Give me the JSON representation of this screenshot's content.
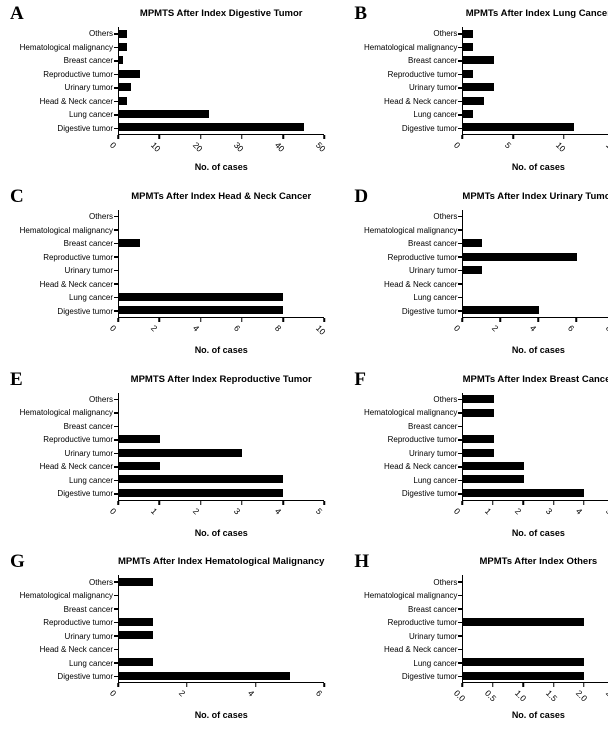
{
  "figure": {
    "x_axis_label": "No. of cases",
    "bar_color": "#000000",
    "background_color": "#ffffff",
    "category_order_top_to_bottom": [
      "Others",
      "Hematological malignancy",
      "Breast cancer",
      "Reproductive tumor",
      "Urinary tumor",
      "Head & Neck cancer",
      "Lung cancer",
      "Digestive tumor"
    ]
  },
  "chart_data": [
    {
      "type": "bar",
      "orientation": "horizontal",
      "panel": "A",
      "title": "MPMTS After Index Digestive Tumor",
      "categories": [
        "Others",
        "Hematological malignancy",
        "Breast cancer",
        "Reproductive tumor",
        "Urinary tumor",
        "Head & Neck cancer",
        "Lung cancer",
        "Digestive tumor"
      ],
      "values": [
        2,
        2,
        1,
        5,
        3,
        2,
        22,
        45
      ],
      "xlabel": "No. of cases",
      "xlim": [
        0,
        50
      ],
      "xticks": [
        "0",
        "10",
        "20",
        "30",
        "40",
        "50"
      ]
    },
    {
      "type": "bar",
      "orientation": "horizontal",
      "panel": "B",
      "title": "MPMTs After Index Lung Cancer",
      "categories": [
        "Others",
        "Hematological malignancy",
        "Breast cancer",
        "Reproductive tumor",
        "Urinary tumor",
        "Head & Neck cancer",
        "Lung cancer",
        "Digestive tumor"
      ],
      "values": [
        1,
        1,
        3,
        1,
        3,
        2,
        1,
        11
      ],
      "xlabel": "No. of cases",
      "xlim": [
        0,
        15
      ],
      "xticks": [
        "0",
        "5",
        "10",
        "15"
      ]
    },
    {
      "type": "bar",
      "orientation": "horizontal",
      "panel": "C",
      "title": "MPMTs After Index Head & Neck Cancer",
      "categories": [
        "Others",
        "Hematological malignancy",
        "Breast cancer",
        "Reproductive tumor",
        "Urinary tumor",
        "Head & Neck cancer",
        "Lung cancer",
        "Digestive tumor"
      ],
      "values": [
        0,
        0,
        1,
        0,
        0,
        0,
        8,
        8
      ],
      "xlabel": "No. of cases",
      "xlim": [
        0,
        10
      ],
      "xticks": [
        "0",
        "2",
        "4",
        "6",
        "8",
        "10"
      ]
    },
    {
      "type": "bar",
      "orientation": "horizontal",
      "panel": "D",
      "title": "MPMTs After Index Urinary Tumor",
      "categories": [
        "Others",
        "Hematological malignancy",
        "Breast cancer",
        "Reproductive tumor",
        "Urinary tumor",
        "Head & Neck cancer",
        "Lung cancer",
        "Digestive tumor"
      ],
      "values": [
        0,
        0,
        1,
        6,
        1,
        0,
        0,
        4
      ],
      "xlabel": "No. of cases",
      "xlim": [
        0,
        8
      ],
      "xticks": [
        "0",
        "2",
        "4",
        "6",
        "8"
      ]
    },
    {
      "type": "bar",
      "orientation": "horizontal",
      "panel": "E",
      "title": "MPMTS After Index Reproductive Tumor",
      "categories": [
        "Others",
        "Hematological malignancy",
        "Breast cancer",
        "Reproductive tumor",
        "Urinary tumor",
        "Head & Neck cancer",
        "Lung cancer",
        "Digestive tumor"
      ],
      "values": [
        0,
        0,
        0,
        1,
        3,
        1,
        4,
        4
      ],
      "xlabel": "No. of cases",
      "xlim": [
        0,
        5
      ],
      "xticks": [
        "0",
        "1",
        "2",
        "3",
        "4",
        "5"
      ]
    },
    {
      "type": "bar",
      "orientation": "horizontal",
      "panel": "F",
      "title": "MPMTs After Index Breast Cancer",
      "categories": [
        "Others",
        "Hematological malignancy",
        "Breast cancer",
        "Reproductive tumor",
        "Urinary tumor",
        "Head & Neck cancer",
        "Lung cancer",
        "Digestive tumor"
      ],
      "values": [
        1,
        1,
        0,
        1,
        1,
        2,
        2,
        4
      ],
      "xlabel": "No. of cases",
      "xlim": [
        0,
        5
      ],
      "xticks": [
        "0",
        "1",
        "2",
        "3",
        "4",
        "5"
      ]
    },
    {
      "type": "bar",
      "orientation": "horizontal",
      "panel": "G",
      "title": "MPMTs After Index Hematological Malignancy",
      "categories": [
        "Others",
        "Hematological malignancy",
        "Breast cancer",
        "Reproductive tumor",
        "Urinary tumor",
        "Head & Neck cancer",
        "Lung cancer",
        "Digestive tumor"
      ],
      "values": [
        1,
        0,
        0,
        1,
        1,
        0,
        1,
        5
      ],
      "xlabel": "No. of cases",
      "xlim": [
        0,
        6
      ],
      "xticks": [
        "0",
        "2",
        "4",
        "6"
      ]
    },
    {
      "type": "bar",
      "orientation": "horizontal",
      "panel": "H",
      "title": "MPMTs After Index Others",
      "categories": [
        "Others",
        "Hematological malignancy",
        "Breast cancer",
        "Reproductive tumor",
        "Urinary tumor",
        "Head & Neck cancer",
        "Lung cancer",
        "Digestive tumor"
      ],
      "values": [
        0,
        0,
        0,
        2,
        0,
        0,
        2,
        2
      ],
      "xlabel": "No. of cases",
      "xlim": [
        0,
        2.5
      ],
      "xticks": [
        "0.0",
        "0.5",
        "1.0",
        "1.5",
        "2.0",
        "2.5"
      ]
    }
  ]
}
